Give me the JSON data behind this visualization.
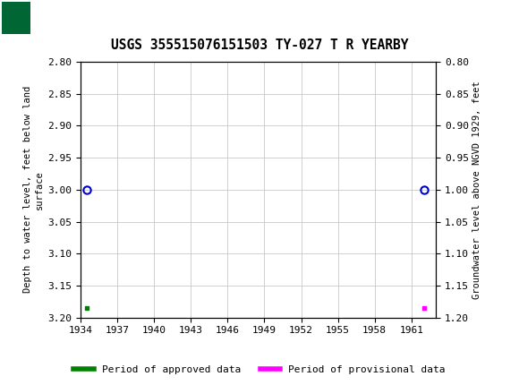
{
  "title": "USGS 355515076151503 TY-027 T R YEARBY",
  "ylabel_left": "Depth to water level, feet below land\nsurface",
  "ylabel_right": "Groundwater level above NGVD 1929, feet",
  "ylim_left": [
    2.8,
    3.2
  ],
  "ylim_right": [
    1.2,
    0.8
  ],
  "xlim": [
    1934,
    1963
  ],
  "xticks": [
    1934,
    1937,
    1940,
    1943,
    1946,
    1949,
    1952,
    1955,
    1958,
    1961
  ],
  "yticks_left": [
    2.8,
    2.85,
    2.9,
    2.95,
    3.0,
    3.05,
    3.1,
    3.15,
    3.2
  ],
  "yticks_right": [
    1.2,
    1.15,
    1.1,
    1.05,
    1.0,
    0.95,
    0.9,
    0.85,
    0.8
  ],
  "approved_x": 1934.5,
  "provisional_x": 1962.0,
  "point_y_circle": 3.0,
  "point_y_square": 3.185,
  "approved_color": "#008000",
  "provisional_color": "#ff00ff",
  "circle_color": "#0000cd",
  "header_color": "#006633",
  "background_color": "#ffffff",
  "grid_color": "#c8c8c8",
  "legend_approved": "Period of approved data",
  "legend_provisional": "Period of provisional data"
}
